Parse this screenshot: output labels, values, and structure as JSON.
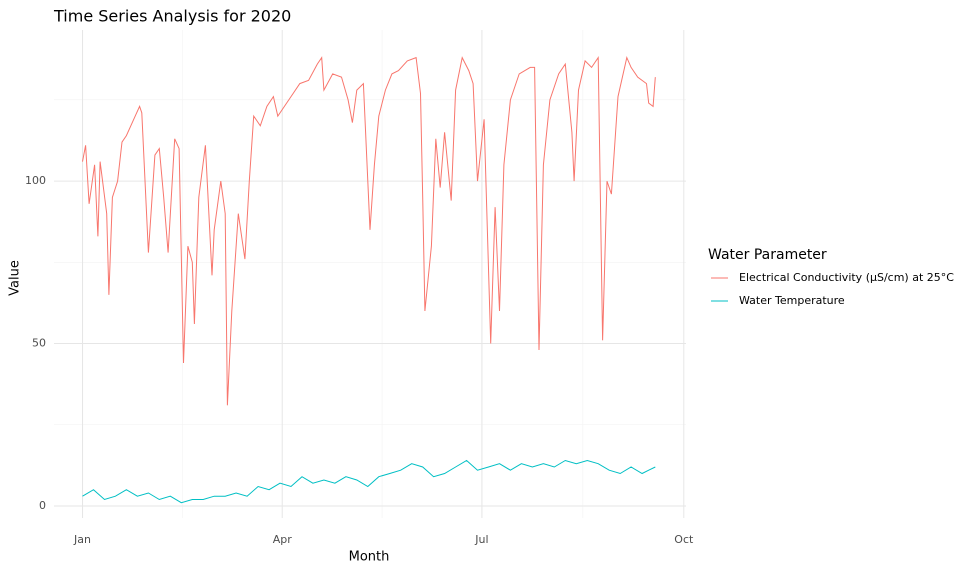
{
  "chart_data": {
    "type": "line",
    "title": "Time Series Analysis for 2020",
    "x_label": "Month",
    "y_label": "Value",
    "legend_title": "Water Parameter",
    "legend_position": "right",
    "xlim": [
      -13,
      275
    ],
    "ylim": [
      -3.7,
      146.5
    ],
    "xticks": [
      {
        "value": 0,
        "label": "Jan"
      },
      {
        "value": 91,
        "label": "Apr"
      },
      {
        "value": 182,
        "label": "Jul"
      },
      {
        "value": 274,
        "label": "Oct"
      }
    ],
    "x_minor_ticks": [
      45.5,
      136.5,
      228
    ],
    "yticks": [
      0,
      50,
      100
    ],
    "y_minor_ticks": [
      25,
      75,
      125
    ],
    "grid": true,
    "series": [
      {
        "name": "Electrical Conductivity (µS/cm) at 25°C",
        "color": "#F8766D",
        "x": [
          0,
          1.4,
          3,
          5.5,
          7,
          8,
          11,
          12,
          13.6,
          16,
          18,
          20,
          24,
          26,
          27,
          30,
          33,
          35,
          37,
          39,
          42,
          44,
          46,
          48,
          50,
          51,
          53,
          56,
          59,
          60,
          63,
          65,
          66,
          68,
          71,
          74,
          76,
          78,
          81,
          84,
          87,
          89,
          92,
          95,
          99,
          103,
          107,
          109,
          110,
          114,
          118,
          121,
          123,
          125,
          128,
          130,
          131,
          133,
          135,
          138,
          141,
          144,
          148,
          152,
          154,
          155,
          156,
          159,
          161,
          163,
          165,
          168,
          170,
          173,
          176,
          178,
          180,
          183,
          186,
          188,
          190,
          192,
          195,
          199,
          204,
          206,
          208,
          210,
          213,
          217,
          220,
          223,
          224,
          226,
          229,
          232,
          235,
          237,
          239,
          241,
          244,
          248,
          250,
          253,
          257,
          258,
          260,
          261
        ],
        "values": [
          106,
          111,
          93,
          105,
          83,
          106,
          90,
          65,
          95,
          100,
          112,
          114,
          120,
          123,
          121,
          78,
          108,
          110,
          95,
          78,
          113,
          110,
          44,
          80,
          75,
          56,
          95,
          111,
          71,
          85,
          100,
          90,
          31,
          60,
          90,
          76,
          100,
          120,
          117,
          123,
          126,
          120,
          123,
          126,
          130,
          131,
          136,
          138,
          128,
          133,
          132,
          125,
          118,
          128,
          130,
          100,
          85,
          105,
          120,
          128,
          133,
          134,
          137,
          138,
          127,
          95,
          60,
          80,
          113,
          98,
          115,
          94,
          128,
          138,
          134,
          130,
          100,
          119,
          50,
          92,
          60,
          105,
          125,
          133,
          135,
          135,
          48,
          105,
          125,
          133,
          136,
          115,
          100,
          128,
          137,
          135,
          138,
          51,
          100,
          96,
          126,
          138,
          135,
          132,
          130,
          124,
          123,
          132
        ]
      },
      {
        "name": "Water Temperature",
        "color": "#00BFC4",
        "x": [
          0,
          5,
          10,
          15,
          20,
          25,
          30,
          35,
          40,
          45,
          50,
          55,
          60,
          65,
          70,
          75,
          80,
          85,
          90,
          95,
          100,
          105,
          110,
          115,
          120,
          125,
          130,
          135,
          140,
          145,
          150,
          155,
          160,
          165,
          170,
          175,
          180,
          185,
          190,
          195,
          200,
          205,
          210,
          215,
          220,
          225,
          230,
          235,
          240,
          245,
          250,
          255,
          258,
          261
        ],
        "values": [
          3,
          5,
          2,
          3,
          5,
          3,
          4,
          2,
          3,
          1,
          2,
          2,
          3,
          3,
          4,
          3,
          6,
          5,
          7,
          6,
          9,
          7,
          8,
          7,
          9,
          8,
          6,
          9,
          10,
          11,
          13,
          12,
          9,
          10,
          12,
          14,
          11,
          12,
          13,
          11,
          13,
          12,
          13,
          12,
          14,
          13,
          14,
          13,
          11,
          10,
          12,
          10,
          11,
          12
        ]
      }
    ]
  }
}
